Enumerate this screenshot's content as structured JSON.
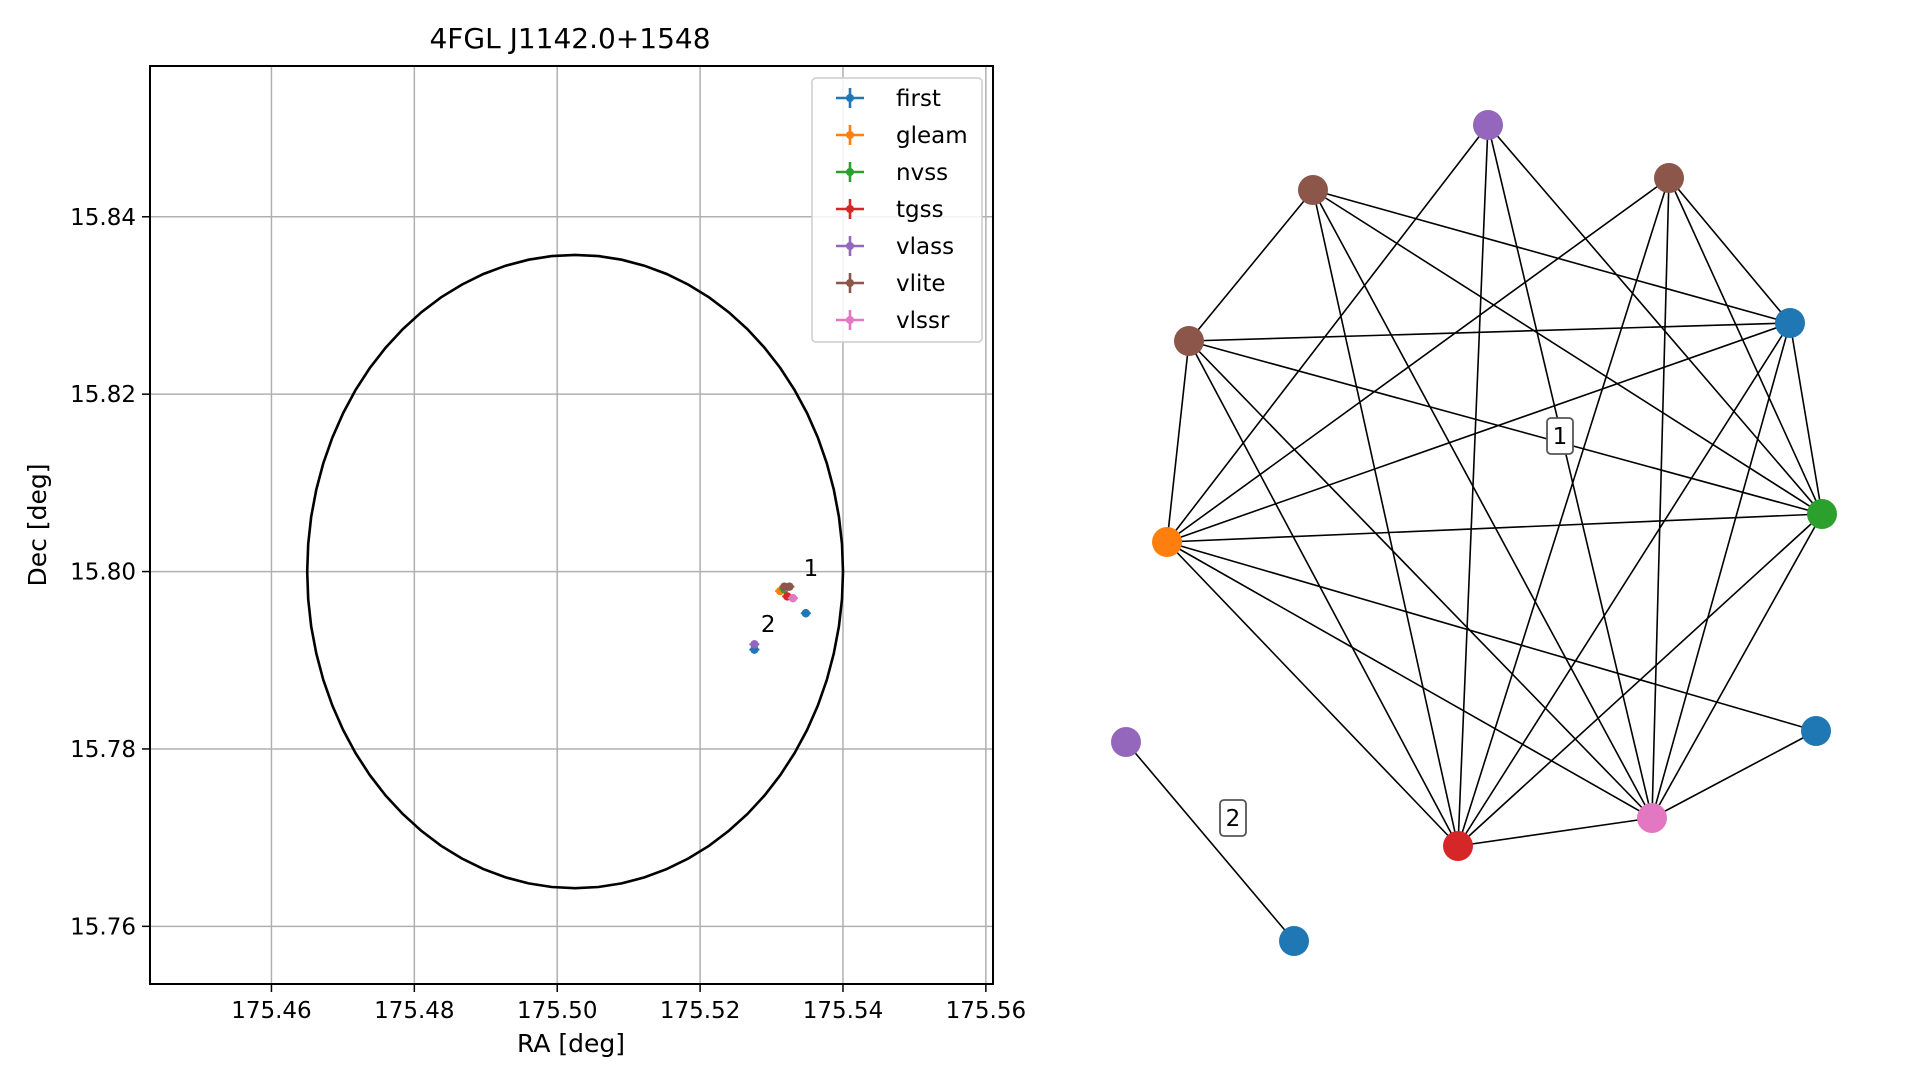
{
  "chart_data": [
    {
      "type": "scatter",
      "title": "4FGL J1142.0+1548",
      "xlabel": "RA [deg]",
      "ylabel": "Dec [deg]",
      "xlim": [
        175.443,
        175.561
      ],
      "ylim": [
        15.7535,
        15.857
      ],
      "xticks": [
        175.46,
        175.48,
        175.5,
        175.52,
        175.54,
        175.56
      ],
      "xtick_labels": [
        "175.46",
        "175.48",
        "175.50",
        "175.52",
        "175.54",
        "175.56"
      ],
      "yticks": [
        15.76,
        15.78,
        15.8,
        15.82,
        15.84
      ],
      "ytick_labels": [
        "15.76",
        "15.78",
        "15.80",
        "15.82",
        "15.84"
      ],
      "grid": true,
      "legend_position": "top-right",
      "ellipse": {
        "center_ra": 175.5025,
        "center_dec": 15.8,
        "semi_axis_ra": 0.0375,
        "semi_axis_dec": 0.0357,
        "color": "#000000"
      },
      "series": [
        {
          "name": "first",
          "color": "#1f77b4",
          "points": [
            [
              175.5348,
              15.7953
            ],
            [
              175.5276,
              15.7912
            ]
          ]
        },
        {
          "name": "gleam",
          "color": "#ff7f0e",
          "points": [
            [
              175.5312,
              15.7978
            ]
          ]
        },
        {
          "name": "nvss",
          "color": "#2ca02c",
          "points": [
            [
              175.5318,
              15.798
            ]
          ]
        },
        {
          "name": "tgss",
          "color": "#d62728",
          "points": [
            [
              175.5322,
              15.7972
            ]
          ]
        },
        {
          "name": "vlass",
          "color": "#9467bd",
          "points": [
            [
              175.532,
              15.7982
            ],
            [
              175.5276,
              15.7918
            ]
          ]
        },
        {
          "name": "vlite",
          "color": "#8c564b",
          "points": [
            [
              175.5318,
              15.7983
            ],
            [
              175.5325,
              15.7983
            ]
          ]
        },
        {
          "name": "vlssr",
          "color": "#e377c2",
          "points": [
            [
              175.533,
              15.797
            ]
          ]
        }
      ],
      "annotations": [
        {
          "text": "1",
          "ra": 175.5345,
          "dec": 15.7995
        },
        {
          "text": "2",
          "ra": 175.5285,
          "dec": 15.7932
        }
      ]
    },
    {
      "type": "network",
      "nodes": [
        {
          "id": "n0",
          "color": "#9467bd"
        },
        {
          "id": "n1",
          "color": "#8c564b"
        },
        {
          "id": "n2",
          "color": "#8c564b"
        },
        {
          "id": "n3",
          "color": "#8c564b"
        },
        {
          "id": "n4",
          "color": "#1f77b4"
        },
        {
          "id": "n5",
          "color": "#ff7f0e"
        },
        {
          "id": "n6",
          "color": "#2ca02c"
        },
        {
          "id": "n7",
          "color": "#1f77b4"
        },
        {
          "id": "n8",
          "color": "#e377c2"
        },
        {
          "id": "n9",
          "color": "#d62728"
        },
        {
          "id": "n10",
          "color": "#9467bd"
        },
        {
          "id": "n11",
          "color": "#1f77b4"
        }
      ],
      "edges": [
        [
          "n0",
          "n5"
        ],
        [
          "n0",
          "n6"
        ],
        [
          "n0",
          "n8"
        ],
        [
          "n0",
          "n9"
        ],
        [
          "n1",
          "n3"
        ],
        [
          "n1",
          "n4"
        ],
        [
          "n1",
          "n6"
        ],
        [
          "n1",
          "n8"
        ],
        [
          "n1",
          "n9"
        ],
        [
          "n2",
          "n5"
        ],
        [
          "n2",
          "n4"
        ],
        [
          "n2",
          "n6"
        ],
        [
          "n2",
          "n8"
        ],
        [
          "n2",
          "n9"
        ],
        [
          "n3",
          "n5"
        ],
        [
          "n3",
          "n4"
        ],
        [
          "n3",
          "n6"
        ],
        [
          "n3",
          "n8"
        ],
        [
          "n3",
          "n9"
        ],
        [
          "n4",
          "n5"
        ],
        [
          "n4",
          "n6"
        ],
        [
          "n4",
          "n8"
        ],
        [
          "n4",
          "n9"
        ],
        [
          "n5",
          "n6"
        ],
        [
          "n5",
          "n7"
        ],
        [
          "n5",
          "n8"
        ],
        [
          "n5",
          "n9"
        ],
        [
          "n6",
          "n8"
        ],
        [
          "n6",
          "n9"
        ],
        [
          "n7",
          "n8"
        ],
        [
          "n8",
          "n9"
        ],
        [
          "n10",
          "n11"
        ]
      ],
      "labels": [
        {
          "text": "1"
        },
        {
          "text": "2"
        }
      ]
    }
  ]
}
